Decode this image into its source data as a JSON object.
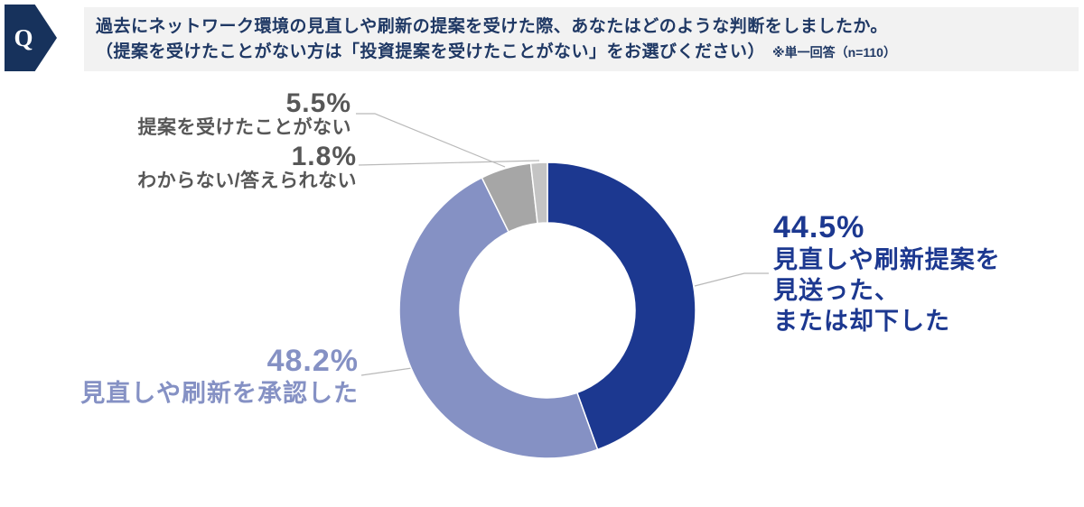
{
  "header": {
    "q_label": "Q",
    "line1": "過去にネットワーク環境の見直しや刷新の提案を受けた際、あなたはどのような判断をしましたか。",
    "line2": "（提案を受けたことがない方は「投資提案を受けたことがない」をお選びください）",
    "note": "※単一回答（n=110）"
  },
  "colors": {
    "badge_bg": "#17325c",
    "header_bg": "#f2f2f2",
    "header_text": "#1f3864",
    "navy": "#1c3890",
    "purple": "#8591c4",
    "gray": "#a6a6a6",
    "light_gray": "#c4c4c4",
    "label_gray": "#575757",
    "leader_line": "#b9b9b9"
  },
  "chart_data": {
    "type": "pie",
    "subtype": "donut",
    "title": "過去にネットワーク環境の見直しや刷新の提案を受けた際、あなたはどのような判断をしましたか。",
    "sample_note": "※単一回答（n=110）",
    "n": 110,
    "start_angle_deg": 0,
    "direction": "clockwise",
    "segments": [
      {
        "label": "見直しや刷新提案を見送った、または却下した",
        "value": 44.5,
        "color": "#1c3890"
      },
      {
        "label": "見直しや刷新を承認した",
        "value": 48.2,
        "color": "#8591c4"
      },
      {
        "label": "提案を受けたことがない",
        "value": 5.5,
        "color": "#a6a6a6"
      },
      {
        "label": "わからない/答えられない",
        "value": 1.8,
        "color": "#c4c4c4"
      }
    ]
  },
  "labels": {
    "rejected": {
      "pct": "44.5%",
      "lines": [
        "見直しや刷新提案を",
        "見送った、",
        "または却下した"
      ]
    },
    "approved": {
      "pct": "48.2%",
      "text": "見直しや刷新を承認した"
    },
    "no_proposal": {
      "pct": "5.5%",
      "text": "提案を受けたことがない"
    },
    "dont_know": {
      "pct": "1.8%",
      "text": "わからない/答えられない"
    }
  }
}
